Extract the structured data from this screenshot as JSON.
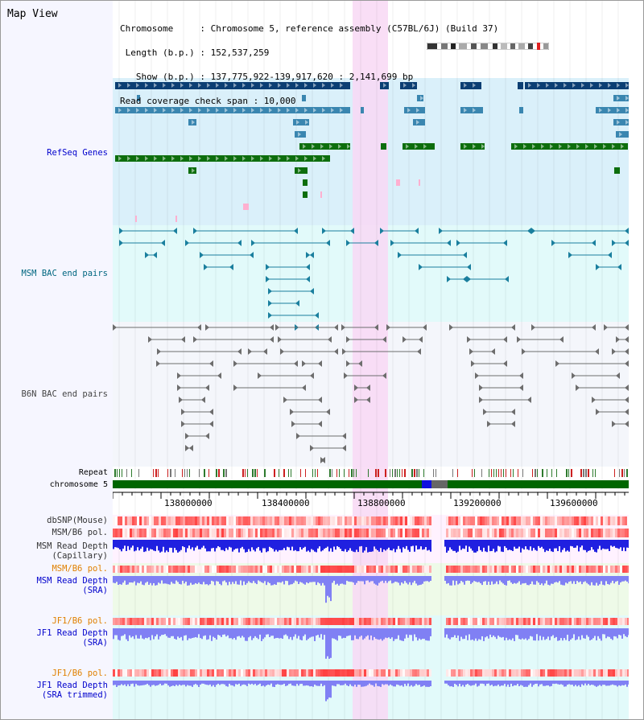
{
  "app_title": "Map View",
  "info": {
    "chromosome_line": "Chromosome     : Chromosome 5, reference assembly (C57BL/6J) (Build 37)",
    "length_line": " Length (b.p.) : 152,537,259",
    "show_line": "   Show (b.p.) : 137,775,922-139,917,620 : 2,141,699 bp",
    "coverage_line": "Read coverage check span : 10,000"
  },
  "tracks": {
    "refseq": "RefSeq Genes",
    "msm_bac": "MSM BAC end pairs",
    "b6n_bac": "B6N BAC end pairs",
    "repeat": "Repeat",
    "chromosome": "chromosome 5",
    "dbsnp": "dbSNP(Mouse)",
    "msm_pol": "MSM/B6 pol.",
    "msm_depth_cap_1": "MSM Read Depth",
    "msm_depth_cap_2": "(Capillary)",
    "msm_pol_sra": "MSM/B6 pol.",
    "msm_depth_sra_1": "MSM Read Depth",
    "msm_depth_sra_2": "(SRA)",
    "jf1_pol": "JF1/B6 pol.",
    "jf1_depth_1": "JF1 Read Depth",
    "jf1_depth_2": "(SRA)",
    "jf1_pol_trim": "JF1/B6 pol.",
    "jf1_trim_1": "JF1 Read Depth",
    "jf1_trim_2": "(SRA trimmed)"
  },
  "axis": {
    "ticks": [
      "138000000",
      "138400000",
      "138800000",
      "139200000",
      "139600000"
    ]
  },
  "highlight_region": "138,700,000-138,850,000",
  "colors": {
    "refseq_dark": "#0b3e73",
    "refseq_mid": "#3a86b0",
    "refseq_green": "#0d6e0d",
    "msm_bac": "#1a7f9e",
    "b6n_bac": "#6d6d6d",
    "chrom_green": "#006600",
    "highlight": "#f8d8f4",
    "depth_blue": "#2020e0",
    "depth_light": "#8080f4",
    "pol_red": "#ff2020"
  }
}
